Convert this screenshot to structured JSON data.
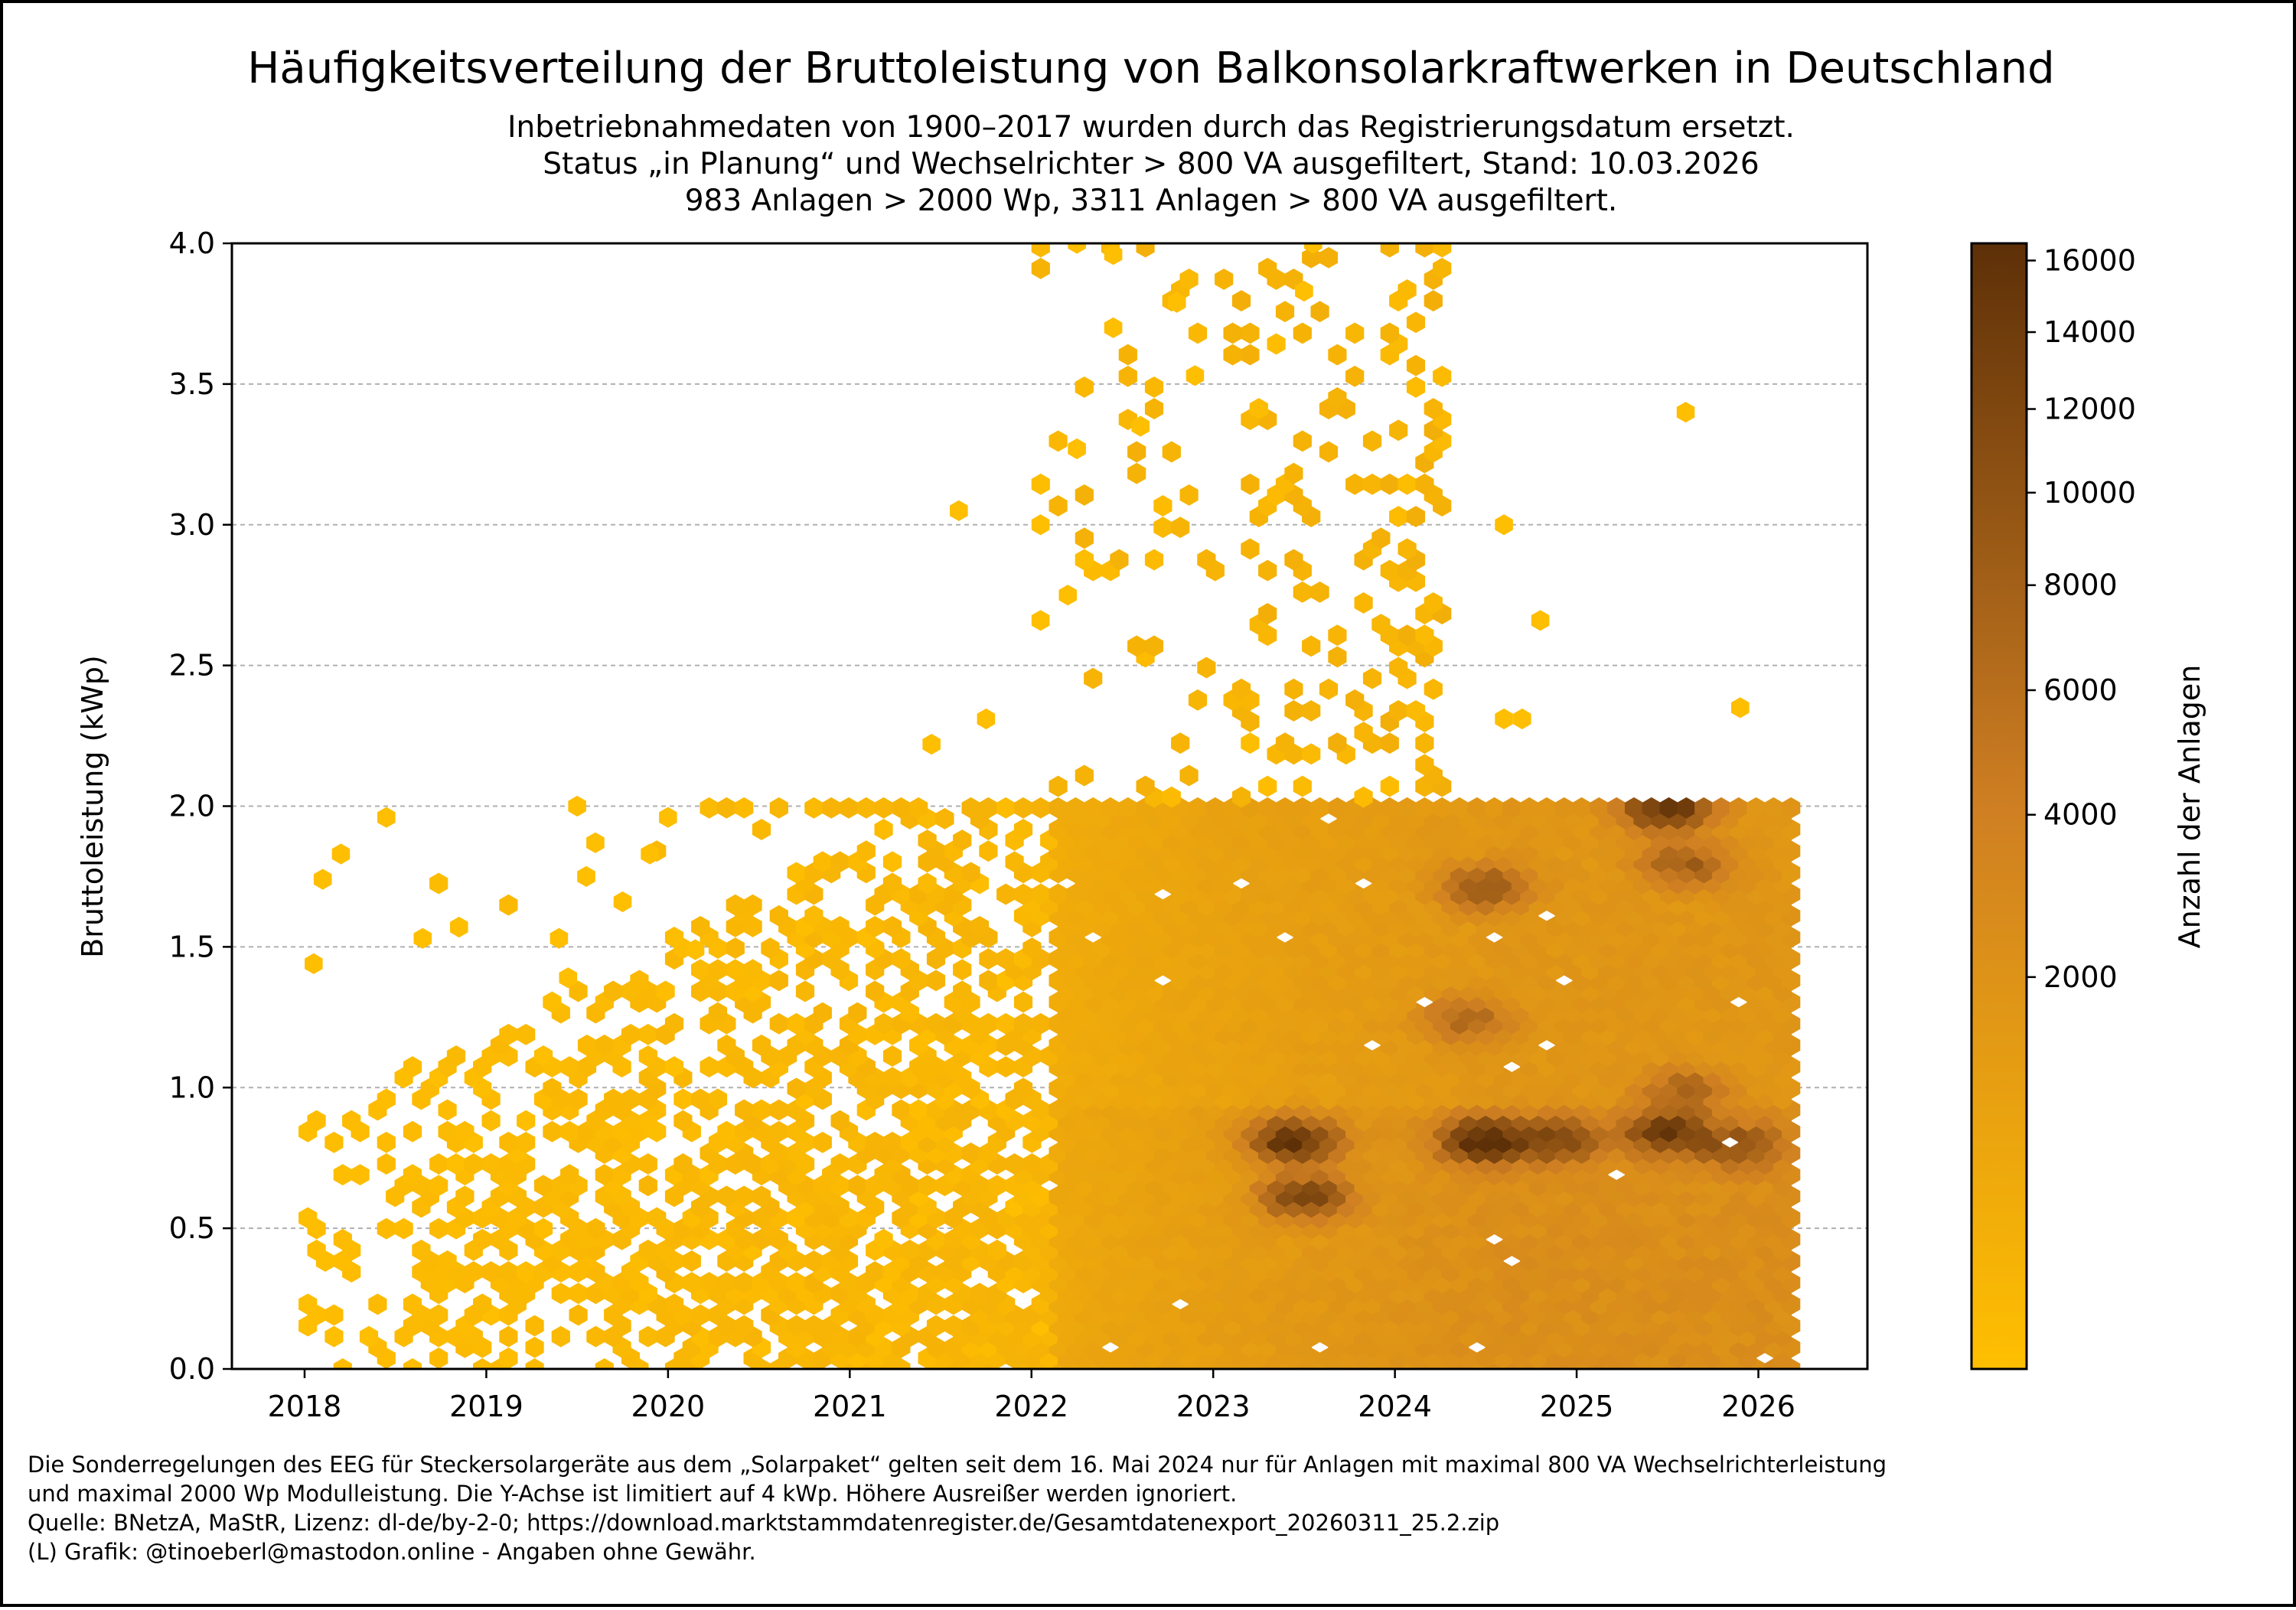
{
  "chart_data": {
    "type": "heatmap",
    "subtype": "hexbin",
    "title": "Häufigkeitsverteilung der Bruttoleistung von Balkonsolarkraftwerken in Deutschland",
    "subtitle_lines": [
      "Inbetriebnahmedaten von 1900–2017 wurden durch das Registrierungsdatum ersetzt.",
      "Status „in Planung“ und Wechselrichter > 800 VA ausgefiltert, Stand: 10.03.2026",
      "983 Anlagen > 2000 Wp, 3311 Anlagen > 800 VA ausgefiltert."
    ],
    "xlabel": "",
    "ylabel": "Bruttoleistung (kWp)",
    "xlim": [
      2017.6,
      2026.6
    ],
    "ylim": [
      0.0,
      4.0
    ],
    "x_ticks": [
      2018,
      2019,
      2020,
      2021,
      2022,
      2023,
      2024,
      2025,
      2026
    ],
    "x_tick_labels": [
      "2018",
      "2019",
      "2020",
      "2021",
      "2022",
      "2023",
      "2024",
      "2025",
      "2026"
    ],
    "y_ticks": [
      0.0,
      0.5,
      1.0,
      1.5,
      2.0,
      2.5,
      3.0,
      3.5,
      4.0
    ],
    "y_tick_labels": [
      "0.0",
      "0.5",
      "1.0",
      "1.5",
      "2.0",
      "2.5",
      "3.0",
      "3.5",
      "4.0"
    ],
    "grid": "horizontal dashed",
    "colorbar": {
      "label": "Anzahl der Anlagen",
      "scale": "sqrt",
      "min": 1,
      "max": 16500,
      "ticks": [
        2000,
        4000,
        6000,
        8000,
        10000,
        12000,
        14000,
        16000
      ],
      "tick_labels": [
        "2000",
        "4000",
        "6000",
        "8000",
        "10000",
        "12000",
        "14000",
        "16000"
      ],
      "color_low": "#ffbf00",
      "color_mid": "#cf7f22",
      "color_high": "#5e3008"
    },
    "dense_region": {
      "x_range": [
        2022.1,
        2026.2
      ],
      "y_range": [
        0.0,
        2.0
      ]
    },
    "sparse_region": {
      "x_range": [
        2018.0,
        2024.3
      ],
      "y_range": [
        0.0,
        4.0
      ]
    },
    "hotspots": [
      {
        "x": 2023.45,
        "y": 0.82,
        "count": 15000
      },
      {
        "x": 2023.5,
        "y": 0.62,
        "count": 11000
      },
      {
        "x": 2024.5,
        "y": 0.82,
        "count": 16500
      },
      {
        "x": 2024.5,
        "y": 1.72,
        "count": 7500
      },
      {
        "x": 2024.9,
        "y": 0.82,
        "count": 9000
      },
      {
        "x": 2025.5,
        "y": 0.85,
        "count": 12000
      },
      {
        "x": 2025.5,
        "y": 2.0,
        "count": 14000
      },
      {
        "x": 2025.6,
        "y": 1.8,
        "count": 6500
      },
      {
        "x": 2025.9,
        "y": 0.8,
        "count": 8000
      },
      {
        "x": 2025.6,
        "y": 1.0,
        "count": 5500
      },
      {
        "x": 2024.4,
        "y": 1.25,
        "count": 5500
      }
    ],
    "outliers": [
      {
        "x": 2018.05,
        "y": 1.44
      },
      {
        "x": 2018.1,
        "y": 1.74
      },
      {
        "x": 2018.2,
        "y": 1.83
      },
      {
        "x": 2018.45,
        "y": 1.96
      },
      {
        "x": 2018.65,
        "y": 1.53
      },
      {
        "x": 2018.85,
        "y": 1.57
      },
      {
        "x": 2019.4,
        "y": 1.53
      },
      {
        "x": 2019.45,
        "y": 1.39
      },
      {
        "x": 2019.5,
        "y": 2.0
      },
      {
        "x": 2019.6,
        "y": 1.87
      },
      {
        "x": 2019.55,
        "y": 1.75
      },
      {
        "x": 2019.75,
        "y": 1.66
      },
      {
        "x": 2019.9,
        "y": 1.83
      },
      {
        "x": 2020.0,
        "y": 1.96
      },
      {
        "x": 2020.15,
        "y": 1.49
      },
      {
        "x": 2021.45,
        "y": 2.22
      },
      {
        "x": 2021.6,
        "y": 3.05
      },
      {
        "x": 2021.75,
        "y": 2.31
      },
      {
        "x": 2022.05,
        "y": 2.66
      },
      {
        "x": 2022.05,
        "y": 3.0
      },
      {
        "x": 2022.2,
        "y": 2.75
      },
      {
        "x": 2022.25,
        "y": 4.0
      },
      {
        "x": 2022.45,
        "y": 3.96
      },
      {
        "x": 2022.45,
        "y": 3.7
      },
      {
        "x": 2022.6,
        "y": 3.35
      },
      {
        "x": 2022.25,
        "y": 3.27
      },
      {
        "x": 2022.8,
        "y": 3.79
      },
      {
        "x": 2022.9,
        "y": 3.53
      },
      {
        "x": 2023.5,
        "y": 3.83
      },
      {
        "x": 2023.55,
        "y": 4.0
      },
      {
        "x": 2025.6,
        "y": 3.4
      },
      {
        "x": 2024.6,
        "y": 3.0
      },
      {
        "x": 2024.8,
        "y": 2.66
      },
      {
        "x": 2024.6,
        "y": 2.31
      },
      {
        "x": 2024.7,
        "y": 2.31
      },
      {
        "x": 2025.9,
        "y": 2.35
      }
    ]
  },
  "footer_lines": [
    "Die Sonderregelungen des EEG für Steckersolargeräte aus dem „Solarpaket“ gelten seit dem 16. Mai 2024 nur für Anlagen mit maximal 800 VA Wechselrichterleistung",
    "und maximal 2000 Wp Modulleistung. Die Y-Achse ist limitiert auf 4 kWp. Höhere Ausreißer werden ignoriert.",
    "Quelle: BNetzA, MaStR, Lizenz: dl-de/by-2-0; https://download.marktstammdatenregister.de/Gesamtdatenexport_20260311_25.2.zip",
    "(L) Grafik: @tinoeberl@mastodon.online - Angaben ohne Gewähr."
  ]
}
